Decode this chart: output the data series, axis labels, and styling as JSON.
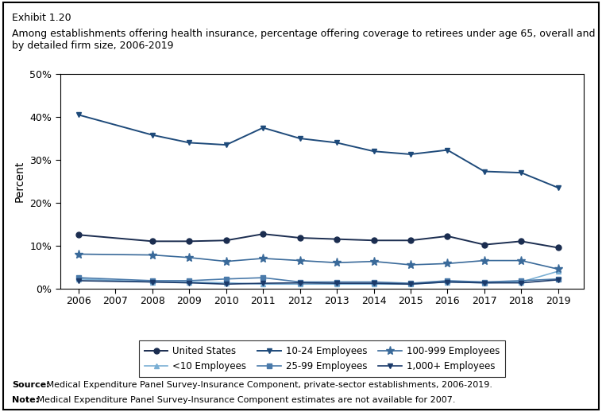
{
  "title_exhibit": "Exhibit 1.20",
  "title_main": "Among establishments offering health insurance, percentage offering coverage to retirees under age 65, overall and\nby detailed firm size, 2006-2019",
  "ylabel": "Percent",
  "source_bold": "Source:",
  "source_rest": " Medical Expenditure Panel Survey-Insurance Component, private-sector establishments, 2006-2019.",
  "note_bold": "Note:",
  "note_rest": " Medical Expenditure Panel Survey-Insurance Component estimates are not available for 2007.",
  "years": [
    2006,
    2008,
    2009,
    2010,
    2011,
    2012,
    2013,
    2014,
    2015,
    2016,
    2017,
    2018,
    2019
  ],
  "series": {
    "United States": [
      12.5,
      11.0,
      11.0,
      11.2,
      12.7,
      11.8,
      11.5,
      11.2,
      11.2,
      12.2,
      10.2,
      11.0,
      9.5
    ],
    "<10 Employees": [
      2.2,
      1.5,
      1.5,
      1.3,
      1.0,
      1.0,
      1.0,
      1.0,
      1.0,
      1.5,
      1.3,
      1.5,
      4.0
    ],
    "10-24 Employees": [
      40.5,
      35.8,
      34.0,
      33.5,
      37.5,
      35.0,
      34.0,
      32.0,
      31.3,
      32.3,
      27.3,
      27.0,
      23.5
    ],
    "25-99 Employees": [
      2.5,
      1.8,
      1.8,
      2.2,
      2.5,
      1.5,
      1.5,
      1.5,
      1.2,
      1.8,
      1.5,
      1.8,
      2.2
    ],
    "100-999 Employees": [
      8.0,
      7.8,
      7.2,
      6.3,
      7.0,
      6.5,
      6.0,
      6.3,
      5.5,
      5.8,
      6.5,
      6.5,
      4.5
    ],
    "1,000+ Employees": [
      1.8,
      1.5,
      1.3,
      1.0,
      1.2,
      1.3,
      1.2,
      1.2,
      1.0,
      1.5,
      1.3,
      1.3,
      2.0
    ]
  },
  "colors": {
    "United States": "#1b2d50",
    "<10 Employees": "#7aafd4",
    "10-24 Employees": "#1e4a7a",
    "25-99 Employees": "#4a7aaa",
    "100-999 Employees": "#3a6a9a",
    "1,000+ Employees": "#1a3a6a"
  },
  "markers": {
    "United States": "o",
    "<10 Employees": "^",
    "10-24 Employees": "v",
    "25-99 Employees": "s",
    "100-999 Employees": "*",
    "1,000+ Employees": "v"
  },
  "markersizes": {
    "United States": 5,
    "<10 Employees": 5,
    "10-24 Employees": 5,
    "25-99 Employees": 5,
    "100-999 Employees": 8,
    "1,000+ Employees": 5
  },
  "linewidths": {
    "United States": 1.4,
    "<10 Employees": 1.2,
    "10-24 Employees": 1.4,
    "25-99 Employees": 1.2,
    "100-999 Employees": 1.2,
    "1,000+ Employees": 1.2
  },
  "ylim": [
    0,
    50
  ],
  "yticks": [
    0,
    10,
    20,
    30,
    40,
    50
  ],
  "ytick_labels": [
    "0%",
    "10%",
    "20%",
    "30%",
    "40%",
    "50%"
  ],
  "legend_order": [
    "United States",
    "<10 Employees",
    "10-24 Employees",
    "25-99 Employees",
    "100-999 Employees",
    "1,000+ Employees"
  ]
}
